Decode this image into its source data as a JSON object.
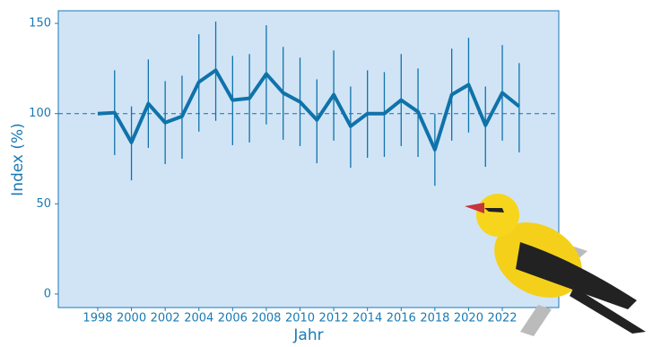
{
  "chart_data": {
    "type": "line",
    "x": [
      1998,
      1999,
      2000,
      2001,
      2002,
      2003,
      2004,
      2005,
      2006,
      2007,
      2008,
      2009,
      2010,
      2011,
      2012,
      2013,
      2014,
      2015,
      2016,
      2017,
      2018,
      2019,
      2020,
      2021,
      2022,
      2023
    ],
    "values": [
      100,
      100.5,
      84,
      105.5,
      95,
      98.5,
      117.5,
      124,
      107.5,
      108.5,
      122,
      111.5,
      106.5,
      96.5,
      110.5,
      93,
      100,
      100,
      107.5,
      101,
      80,
      110.5,
      116,
      93.5,
      111.5,
      104
    ],
    "lower": [
      null,
      77,
      63,
      81,
      72,
      75,
      90,
      96,
      82.5,
      84,
      94,
      85.5,
      82,
      72.5,
      85,
      70,
      75.5,
      76,
      82,
      76,
      60,
      85,
      89.5,
      70.5,
      85,
      78.5
    ],
    "upper": [
      null,
      124,
      104,
      130,
      118,
      121,
      144,
      151,
      132,
      133,
      149,
      137,
      131,
      119,
      135,
      115,
      124,
      123,
      133,
      125,
      100,
      136,
      142,
      115,
      138,
      128
    ],
    "color": "#0f73aa",
    "reference_line": 100,
    "xlabel": "Jahr",
    "ylabel": "Index (%)",
    "xlim": [
      1995.66,
      2025.35
    ],
    "ylim": [
      -7.5,
      157
    ],
    "xticks": [
      1998,
      2000,
      2002,
      2004,
      2006,
      2008,
      2010,
      2012,
      2014,
      2016,
      2018,
      2020,
      2022
    ],
    "yticks": [
      0,
      50,
      100,
      150
    ]
  }
}
